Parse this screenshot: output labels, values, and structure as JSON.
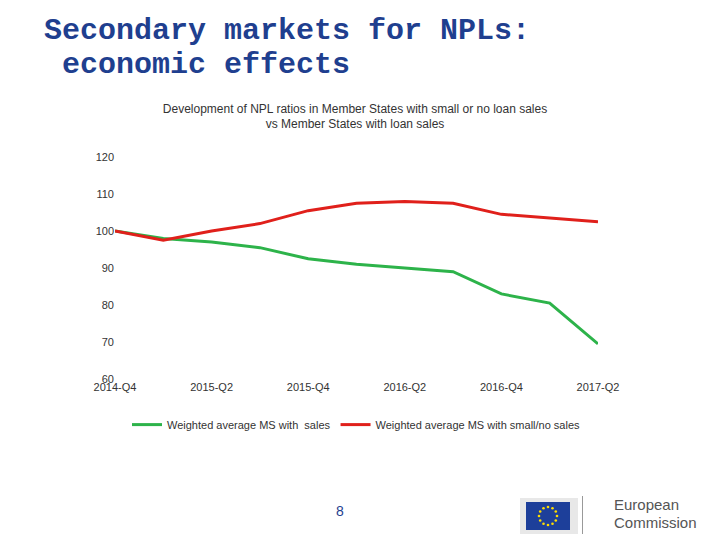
{
  "header": {
    "title": [
      "Secondary markets for NPLs:",
      "economic effects"
    ]
  },
  "footer": {
    "page": "8",
    "logo": [
      "European",
      "Commission"
    ]
  },
  "chart_data": {
    "type": "line",
    "title": [
      "Development of NPL ratios in Member States with small or no loan sales",
      "vs Member States with loan sales"
    ],
    "categories": [
      "2014-Q4",
      null,
      "2015-Q2",
      null,
      "2015-Q4",
      null,
      "2016-Q2",
      null,
      "2016-Q4",
      null,
      "2017-Q2"
    ],
    "series": [
      {
        "name": "Weighted average MS with  sales",
        "color": "#2db34a",
        "values": [
          100,
          98,
          97,
          95.5,
          92.5,
          91,
          90,
          89,
          83,
          80.5,
          69.5
        ]
      },
      {
        "name": "Weighted average MS with small/no sales",
        "color": "#e0201b",
        "values": [
          100,
          97.5,
          100,
          102,
          105.5,
          107.5,
          108,
          107.5,
          104.5,
          103.5,
          102.5
        ]
      }
    ],
    "ylim": [
      60,
      120
    ],
    "yticks": [
      60,
      70,
      80,
      90,
      100,
      110,
      120
    ],
    "grid": false,
    "legend": "bottom"
  }
}
